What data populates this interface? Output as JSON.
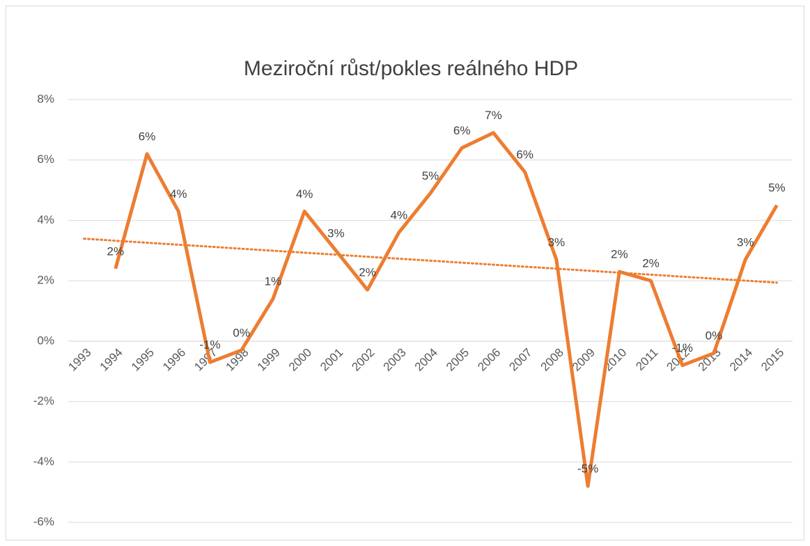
{
  "chart_data": {
    "type": "line",
    "title": "Meziroční růst/pokles reálného HDP",
    "categories": [
      "1993",
      "1994",
      "1995",
      "1996",
      "1997",
      "1998",
      "1999",
      "2000",
      "2001",
      "2002",
      "2003",
      "2004",
      "2005",
      "2006",
      "2007",
      "2008",
      "2009",
      "2010",
      "2011",
      "2012",
      "2013",
      "2014",
      "2015"
    ],
    "series": [
      {
        "color": "#ed7d31",
        "values": [
          null,
          2.4,
          6.2,
          4.3,
          -0.7,
          -0.3,
          1.4,
          4.3,
          3.0,
          1.7,
          3.6,
          4.9,
          6.4,
          6.9,
          5.6,
          2.7,
          -4.8,
          2.3,
          2.0,
          -0.8,
          -0.4,
          2.7,
          4.5
        ],
        "value_labels": [
          null,
          "2%",
          "6%",
          "4%",
          "-1%",
          "0%",
          "1%",
          "4%",
          "3%",
          "2%",
          "4%",
          "5%",
          "6%",
          "7%",
          "6%",
          "3%",
          "-5%",
          "2%",
          "2%",
          "-1%",
          "0%",
          "3%",
          "5%"
        ],
        "trendline": true
      }
    ],
    "ylim": [
      -6,
      8
    ],
    "yticks": [
      {
        "value": -6,
        "label": "-6%"
      },
      {
        "value": -4,
        "label": "-4%"
      },
      {
        "value": -2,
        "label": "-2%"
      },
      {
        "value": 0,
        "label": "0%"
      },
      {
        "value": 2,
        "label": "2%"
      },
      {
        "value": 4,
        "label": "4%"
      },
      {
        "value": 6,
        "label": "6%"
      },
      {
        "value": 8,
        "label": "8%"
      }
    ],
    "grid": true
  }
}
